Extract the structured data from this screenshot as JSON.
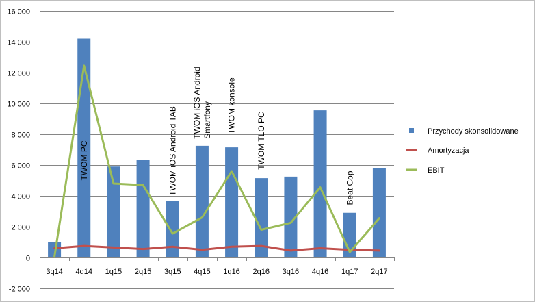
{
  "chart_data": {
    "type": "bar",
    "categories": [
      "3q14",
      "4q14",
      "1q15",
      "2q15",
      "3q15",
      "4q15",
      "1q16",
      "2q16",
      "3q16",
      "4q16",
      "1q17",
      "2q17"
    ],
    "ylim": [
      -2000,
      16000
    ],
    "ytick_values": [
      -2000,
      0,
      2000,
      4000,
      6000,
      8000,
      10000,
      12000,
      14000,
      16000
    ],
    "ytick_labels": [
      "-2 000",
      "0",
      "2 000",
      "4 000",
      "6 000",
      "8 000",
      "10 000",
      "12 000",
      "14 000",
      "16 000"
    ],
    "grid": "horizontal",
    "legend_position": "right",
    "series": [
      {
        "name": "Przychody skonsolidowane",
        "kind": "bar",
        "color": "#4f81bd",
        "values": [
          1000,
          14200,
          5900,
          6350,
          3650,
          7250,
          7150,
          5150,
          5250,
          9550,
          2900,
          5800
        ]
      },
      {
        "name": "Amortyzacja",
        "kind": "line",
        "color": "#c0504d",
        "values": [
          600,
          750,
          650,
          550,
          700,
          500,
          700,
          750,
          450,
          600,
          500,
          450
        ]
      },
      {
        "name": "EBIT",
        "kind": "line",
        "color": "#9bbb59",
        "values": [
          50,
          12450,
          4800,
          4700,
          1550,
          2600,
          5600,
          1800,
          2250,
          4550,
          350,
          2550
        ]
      }
    ],
    "annotations": [
      {
        "category_index": 1,
        "lines": [
          "TWOM PC"
        ],
        "anchor_value": 5000
      },
      {
        "category_index": 4,
        "lines": [
          "TWOM iOS Android TAB"
        ],
        "anchor_value": 4000
      },
      {
        "category_index": 5,
        "lines": [
          "TWOM iOS Android",
          "Smartfony"
        ],
        "anchor_value": 7700
      },
      {
        "category_index": 6,
        "lines": [
          "TWOM konsole"
        ],
        "anchor_value": 8000
      },
      {
        "category_index": 7,
        "lines": [
          "TWOM TLO  PC"
        ],
        "anchor_value": 5700
      },
      {
        "category_index": 10,
        "lines": [
          "Beat Cop"
        ],
        "anchor_value": 3400
      }
    ]
  }
}
